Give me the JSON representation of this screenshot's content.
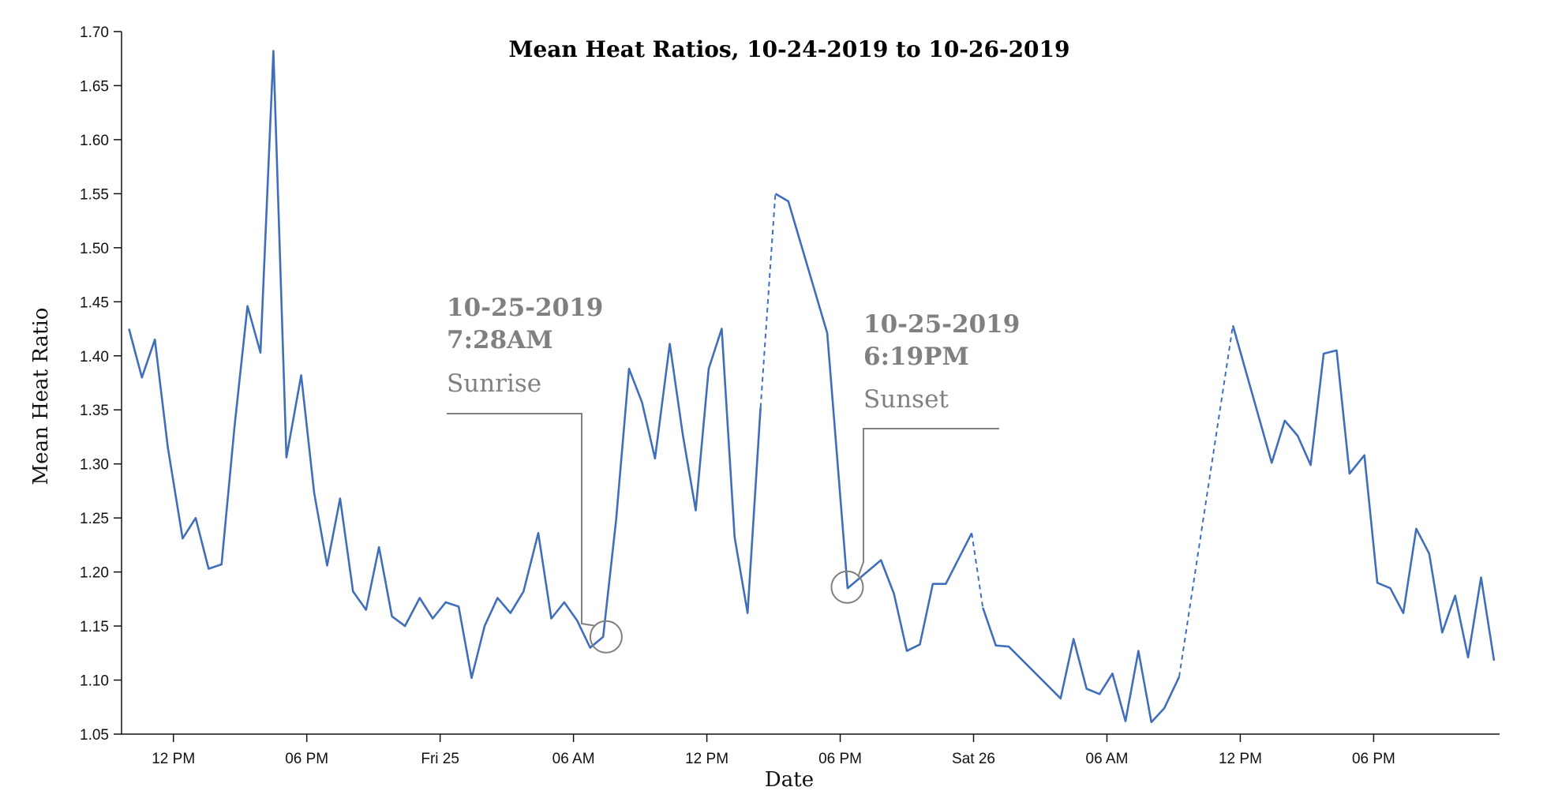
{
  "chart_data": {
    "type": "line",
    "title": "Mean Heat Ratios, 10-24-2019 to 10-26-2019",
    "xlabel": "Date",
    "ylabel": "Mean Heat Ratio",
    "ylim": [
      1.05,
      1.7
    ],
    "xlim": [
      "2019-10-24T09:40",
      "2019-10-26T23:40"
    ],
    "y_ticks": [
      "1.05",
      "1.10",
      "1.15",
      "1.20",
      "1.25",
      "1.30",
      "1.35",
      "1.40",
      "1.45",
      "1.50",
      "1.55",
      "1.60",
      "1.65",
      "1.70"
    ],
    "x_ticks": [
      {
        "t": "2019-10-24T12:00",
        "label": "12 PM"
      },
      {
        "t": "2019-10-24T18:00",
        "label": "06 PM"
      },
      {
        "t": "2019-10-25T00:00",
        "label": "Fri 25"
      },
      {
        "t": "2019-10-25T06:00",
        "label": "06 AM"
      },
      {
        "t": "2019-10-25T12:00",
        "label": "12 PM"
      },
      {
        "t": "2019-10-25T18:00",
        "label": "06 PM"
      },
      {
        "t": "2019-10-26T00:00",
        "label": "Sat 26"
      },
      {
        "t": "2019-10-26T06:00",
        "label": "06 AM"
      },
      {
        "t": "2019-10-26T12:00",
        "label": "12 PM"
      },
      {
        "t": "2019-10-26T18:00",
        "label": "06 PM"
      }
    ],
    "series": [
      {
        "color": "#3f6fba",
        "segments": [
          [
            [
              "2019-10-24T10:00",
              1.425
            ],
            [
              "2019-10-24T10:35",
              1.38
            ],
            [
              "2019-10-24T11:10",
              1.415
            ],
            [
              "2019-10-24T11:45",
              1.315
            ],
            [
              "2019-10-24T12:25",
              1.231
            ],
            [
              "2019-10-24T13:00",
              1.25
            ],
            [
              "2019-10-24T13:35",
              1.203
            ],
            [
              "2019-10-24T14:10",
              1.207
            ],
            [
              "2019-10-24T14:45",
              1.335
            ],
            [
              "2019-10-24T15:20",
              1.446
            ],
            [
              "2019-10-24T15:55",
              1.403
            ],
            [
              "2019-10-24T16:30",
              1.682
            ],
            [
              "2019-10-24T17:05",
              1.306
            ],
            [
              "2019-10-24T17:45",
              1.382
            ],
            [
              "2019-10-24T18:20",
              1.273
            ],
            [
              "2019-10-24T18:55",
              1.206
            ],
            [
              "2019-10-24T19:30",
              1.268
            ],
            [
              "2019-10-24T20:05",
              1.182
            ],
            [
              "2019-10-24T20:40",
              1.165
            ],
            [
              "2019-10-24T21:15",
              1.223
            ],
            [
              "2019-10-24T21:50",
              1.159
            ],
            [
              "2019-10-24T22:25",
              1.15
            ],
            [
              "2019-10-24T23:05",
              1.176
            ],
            [
              "2019-10-24T23:40",
              1.157
            ],
            [
              "2019-10-25T00:15",
              1.172
            ],
            [
              "2019-10-25T00:50",
              1.168
            ],
            [
              "2019-10-25T01:25",
              1.102
            ],
            [
              "2019-10-25T02:00",
              1.15
            ],
            [
              "2019-10-25T02:35",
              1.176
            ],
            [
              "2019-10-25T03:10",
              1.162
            ],
            [
              "2019-10-25T03:45",
              1.182
            ],
            [
              "2019-10-25T04:25",
              1.236
            ],
            [
              "2019-10-25T05:00",
              1.157
            ],
            [
              "2019-10-25T05:35",
              1.172
            ],
            [
              "2019-10-25T06:10",
              1.155
            ],
            [
              "2019-10-25T06:45",
              1.13
            ],
            [
              "2019-10-25T07:20",
              1.14
            ],
            [
              "2019-10-25T07:55",
              1.248
            ],
            [
              "2019-10-25T08:30",
              1.388
            ],
            [
              "2019-10-25T09:05",
              1.357
            ],
            [
              "2019-10-25T09:40",
              1.305
            ],
            [
              "2019-10-25T10:20",
              1.411
            ],
            [
              "2019-10-25T10:55",
              1.327
            ],
            [
              "2019-10-25T11:30",
              1.257
            ],
            [
              "2019-10-25T12:05",
              1.388
            ],
            [
              "2019-10-25T12:40",
              1.425
            ],
            [
              "2019-10-25T13:15",
              1.232
            ],
            [
              "2019-10-25T13:50",
              1.162
            ],
            [
              "2019-10-25T14:25",
              1.352
            ]
          ],
          [
            [
              "2019-10-25T15:05",
              1.55
            ],
            [
              "2019-10-25T15:40",
              1.543
            ],
            [
              "2019-10-25T17:25",
              1.421
            ],
            [
              "2019-10-25T18:20",
              1.185
            ],
            [
              "2019-10-25T19:50",
              1.211
            ],
            [
              "2019-10-25T20:25",
              1.18
            ],
            [
              "2019-10-25T21:00",
              1.127
            ],
            [
              "2019-10-25T21:35",
              1.133
            ],
            [
              "2019-10-25T22:10",
              1.189
            ],
            [
              "2019-10-25T22:45",
              1.189
            ],
            [
              "2019-10-25T23:55",
              1.236
            ]
          ],
          [
            [
              "2019-10-26T00:25",
              1.167
            ],
            [
              "2019-10-26T01:00",
              1.132
            ],
            [
              "2019-10-26T01:35",
              1.131
            ],
            [
              "2019-10-26T03:55",
              1.083
            ],
            [
              "2019-10-26T04:30",
              1.138
            ],
            [
              "2019-10-26T05:05",
              1.092
            ],
            [
              "2019-10-26T05:40",
              1.087
            ],
            [
              "2019-10-26T06:15",
              1.106
            ],
            [
              "2019-10-26T06:50",
              1.062
            ],
            [
              "2019-10-26T07:25",
              1.127
            ],
            [
              "2019-10-26T08:00",
              1.061
            ],
            [
              "2019-10-26T08:35",
              1.074
            ],
            [
              "2019-10-26T09:15",
              1.103
            ]
          ],
          [
            [
              "2019-10-26T11:40",
              1.428
            ],
            [
              "2019-10-26T13:25",
              1.301
            ],
            [
              "2019-10-26T14:00",
              1.34
            ],
            [
              "2019-10-26T14:35",
              1.326
            ],
            [
              "2019-10-26T15:10",
              1.299
            ],
            [
              "2019-10-26T15:45",
              1.402
            ],
            [
              "2019-10-26T16:20",
              1.405
            ],
            [
              "2019-10-26T16:55",
              1.291
            ],
            [
              "2019-10-26T17:35",
              1.308
            ],
            [
              "2019-10-26T18:10",
              1.19
            ],
            [
              "2019-10-26T18:45",
              1.185
            ],
            [
              "2019-10-26T19:20",
              1.162
            ],
            [
              "2019-10-26T19:55",
              1.24
            ],
            [
              "2019-10-26T20:30",
              1.217
            ],
            [
              "2019-10-26T21:05",
              1.144
            ],
            [
              "2019-10-26T21:40",
              1.178
            ],
            [
              "2019-10-26T22:15",
              1.121
            ],
            [
              "2019-10-26T22:50",
              1.195
            ],
            [
              "2019-10-26T23:25",
              1.118
            ]
          ]
        ],
        "gaps": [
          [
            [
              "2019-10-25T14:25",
              1.352
            ],
            [
              "2019-10-25T15:05",
              1.55
            ]
          ],
          [
            [
              "2019-10-25T23:55",
              1.236
            ],
            [
              "2019-10-26T00:25",
              1.167
            ]
          ],
          [
            [
              "2019-10-26T09:15",
              1.103
            ],
            [
              "2019-10-26T11:40",
              1.428
            ]
          ]
        ]
      }
    ],
    "annotations": [
      {
        "date": "10-25-2019",
        "time": "7:28AM",
        "label": "Sunrise",
        "point": [
          "2019-10-25T07:28",
          1.14
        ]
      },
      {
        "date": "10-25-2019",
        "time": "6:19PM",
        "label": "Sunset",
        "point": [
          "2019-10-25T18:19",
          1.186
        ]
      }
    ]
  },
  "style": {
    "line_color": "#3f6fba",
    "annotation_color": "#808080",
    "axis_color": "#111111"
  }
}
